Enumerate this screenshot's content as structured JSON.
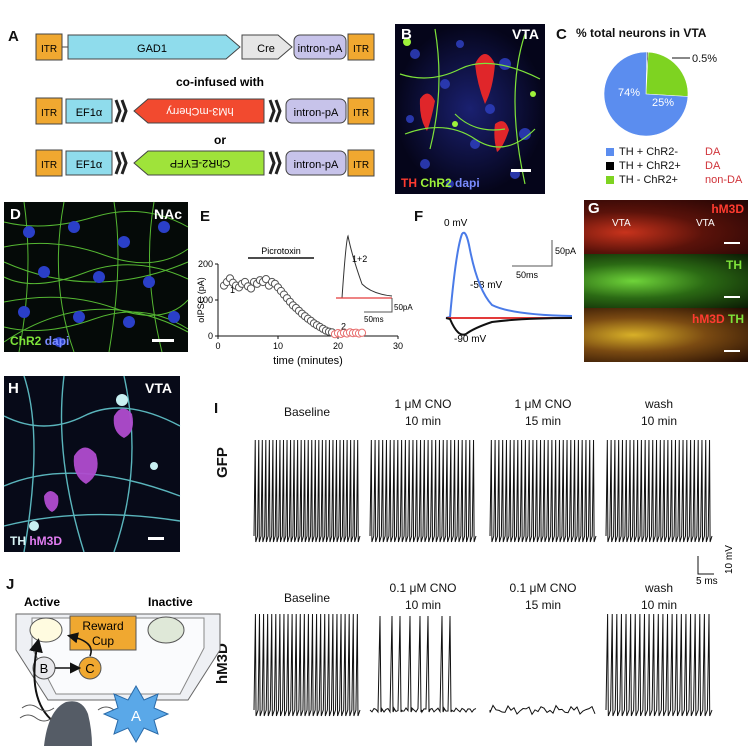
{
  "panel_labels": {
    "A": "A",
    "B": "B",
    "C": "C",
    "D": "D",
    "E": "E",
    "F": "F",
    "G": "G",
    "H": "H",
    "I": "I",
    "J": "J"
  },
  "panelA": {
    "row1": [
      "ITR",
      "GAD1",
      "Cre",
      "intron-pA",
      "ITR"
    ],
    "coinfused": "co-infused with",
    "row2": [
      "ITR",
      "EF1α",
      "hM3-mCherry",
      "intron-pA",
      "ITR"
    ],
    "or": "or",
    "row3": [
      "ITR",
      "EF1α",
      "ChR2-EYFP",
      "intron-pA",
      "ITR"
    ],
    "colors": {
      "itr": "#f0a830",
      "gad1": "#8fdcec",
      "cre": "#e6e6e6",
      "intron": "#c7c3ea",
      "ef1a": "#8fdcec",
      "hm3": "#f24a2f",
      "chr2": "#9fe33a"
    }
  },
  "panelB": {
    "region": "VTA",
    "label_th": "TH",
    "label_chr2": "ChR2",
    "label_dapi": "dapi"
  },
  "panelC": {
    "title": "% total neurons in VTA",
    "chart_data": {
      "type": "pie",
      "slices": [
        {
          "label": "TH + ChR2-",
          "value": 74,
          "text": "74%",
          "color": "#5b8def",
          "class": "DA"
        },
        {
          "label": "TH + ChR2+",
          "value": 0.5,
          "text": "0.5%",
          "color": "#000000",
          "class": "DA"
        },
        {
          "label": "TH - ChR2+",
          "value": 25,
          "text": "25%",
          "color": "#7ed321",
          "class": "non-DA"
        }
      ]
    }
  },
  "panelD": {
    "region": "NAc",
    "label_chr2": "ChR2",
    "label_dapi": "dapi"
  },
  "panelE": {
    "chart_data": {
      "type": "scatter",
      "xlabel": "time (minutes)",
      "ylabel": "oIPSC (pA)",
      "xlim": [
        0,
        30
      ],
      "ylim": [
        0,
        200
      ],
      "xticks": [
        0,
        10,
        20,
        30
      ],
      "yticks": [
        0,
        100,
        200
      ],
      "drug": "Picrotoxin",
      "drug_start": 5,
      "drug_end": 16,
      "label_1": "1",
      "label_2": "2",
      "inset_label": "1+2",
      "inset_scale_y": "50pA",
      "inset_scale_x": "50ms",
      "series": [
        {
          "points": [
            [
              1,
              140
            ],
            [
              1.5,
              150
            ],
            [
              2,
              160
            ],
            [
              2.5,
              148
            ],
            [
              3,
              140
            ],
            [
              3.5,
              135
            ],
            [
              4,
              145
            ],
            [
              4.5,
              150
            ],
            [
              5,
              138
            ],
            [
              5.5,
              132
            ],
            [
              6,
              150
            ],
            [
              6.5,
              145
            ],
            [
              7,
              155
            ],
            [
              7.5,
              150
            ],
            [
              8,
              158
            ],
            [
              8.5,
              140
            ],
            [
              9,
              150
            ],
            [
              9.5,
              145
            ],
            [
              10,
              135
            ],
            [
              10.5,
              125
            ],
            [
              11,
              115
            ],
            [
              11.5,
              105
            ],
            [
              12,
              95
            ],
            [
              12.5,
              85
            ],
            [
              13,
              78
            ],
            [
              13.5,
              70
            ],
            [
              14,
              62
            ],
            [
              14.5,
              55
            ],
            [
              15,
              48
            ],
            [
              15.5,
              42
            ],
            [
              16,
              35
            ],
            [
              16.5,
              30
            ],
            [
              17,
              25
            ],
            [
              17.5,
              20
            ],
            [
              18,
              15
            ],
            [
              18.5,
              12
            ],
            [
              19,
              10
            ]
          ]
        },
        {
          "points": [
            [
              19.5,
              5
            ],
            [
              20,
              8
            ],
            [
              20.5,
              6
            ],
            [
              21,
              9
            ],
            [
              21.5,
              7
            ],
            [
              22,
              10
            ],
            [
              22.5,
              8
            ],
            [
              23,
              9
            ],
            [
              23.5,
              7
            ],
            [
              24,
              9
            ]
          ]
        }
      ]
    }
  },
  "panelF": {
    "trace_top": "0 mV",
    "trace_mid": "-58 mV",
    "trace_bot": "-90 mV",
    "scale_y": "50pA",
    "scale_x": "50ms"
  },
  "panelG": {
    "label_hm3d": "hM3D",
    "vta_left": "VTA",
    "vta_right": "VTA",
    "label_th": "TH",
    "label_merge_a": "hM3D",
    "label_merge_b": "TH"
  },
  "panelH": {
    "region": "VTA",
    "label_th": "TH",
    "label_hm3d": "hM3D"
  },
  "panelI": {
    "gfp_label": "GFP",
    "hm3d_label": "hM3D",
    "gfp_conditions": [
      {
        "l1": "Baseline",
        "l2": ""
      },
      {
        "l1": "1 μM CNO",
        "l2": "10 min"
      },
      {
        "l1": "1 μM CNO",
        "l2": "15 min"
      },
      {
        "l1": "wash",
        "l2": "10 min"
      }
    ],
    "hm3d_conditions": [
      {
        "l1": "Baseline",
        "l2": ""
      },
      {
        "l1": "0.1 μM CNO",
        "l2": "10 min"
      },
      {
        "l1": "0.1 μM CNO",
        "l2": "15 min"
      },
      {
        "l1": "wash",
        "l2": "10 min"
      }
    ],
    "scale_x": "5 ms",
    "scale_y": "10 mV",
    "spike_counts_gfp": [
      30,
      28,
      28,
      28
    ],
    "spike_counts_hm3d": [
      26,
      8,
      0,
      23
    ]
  },
  "panelJ": {
    "active": "Active",
    "inactive": "Inactive",
    "reward": "Reward",
    "cup": "Cup",
    "b": "B",
    "c": "C",
    "a": "A"
  }
}
